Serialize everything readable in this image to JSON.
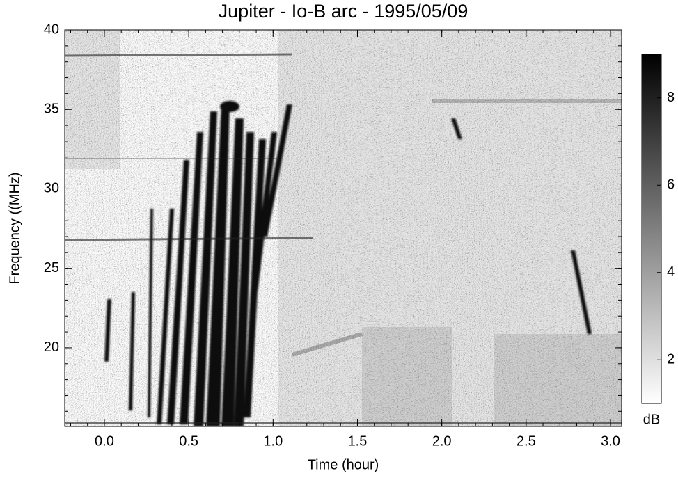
{
  "chart_data": {
    "type": "spectrogram",
    "title": "Jupiter - Io-B arc - 1995/05/09",
    "x_label": "Time (hour)",
    "y_label": "Frequency ((MHz)",
    "xlim": [
      -0.235,
      3.066
    ],
    "xticks": [
      {
        "value": 0,
        "label": "0.0"
      },
      0.5,
      {
        "value": 1,
        "label": "1.0"
      },
      1.5,
      {
        "value": 2,
        "label": "2.0"
      },
      2.5,
      {
        "value": 3,
        "label": "3.0"
      }
    ],
    "ylim": [
      15.05,
      40
    ],
    "yticks": [
      20,
      25,
      30,
      35,
      40
    ],
    "colorbar": {
      "label": "dB",
      "lim": [
        1,
        9
      ],
      "ticks": [
        2,
        4,
        6,
        8
      ],
      "colors": [
        "#ffffff",
        "#000000"
      ]
    }
  }
}
